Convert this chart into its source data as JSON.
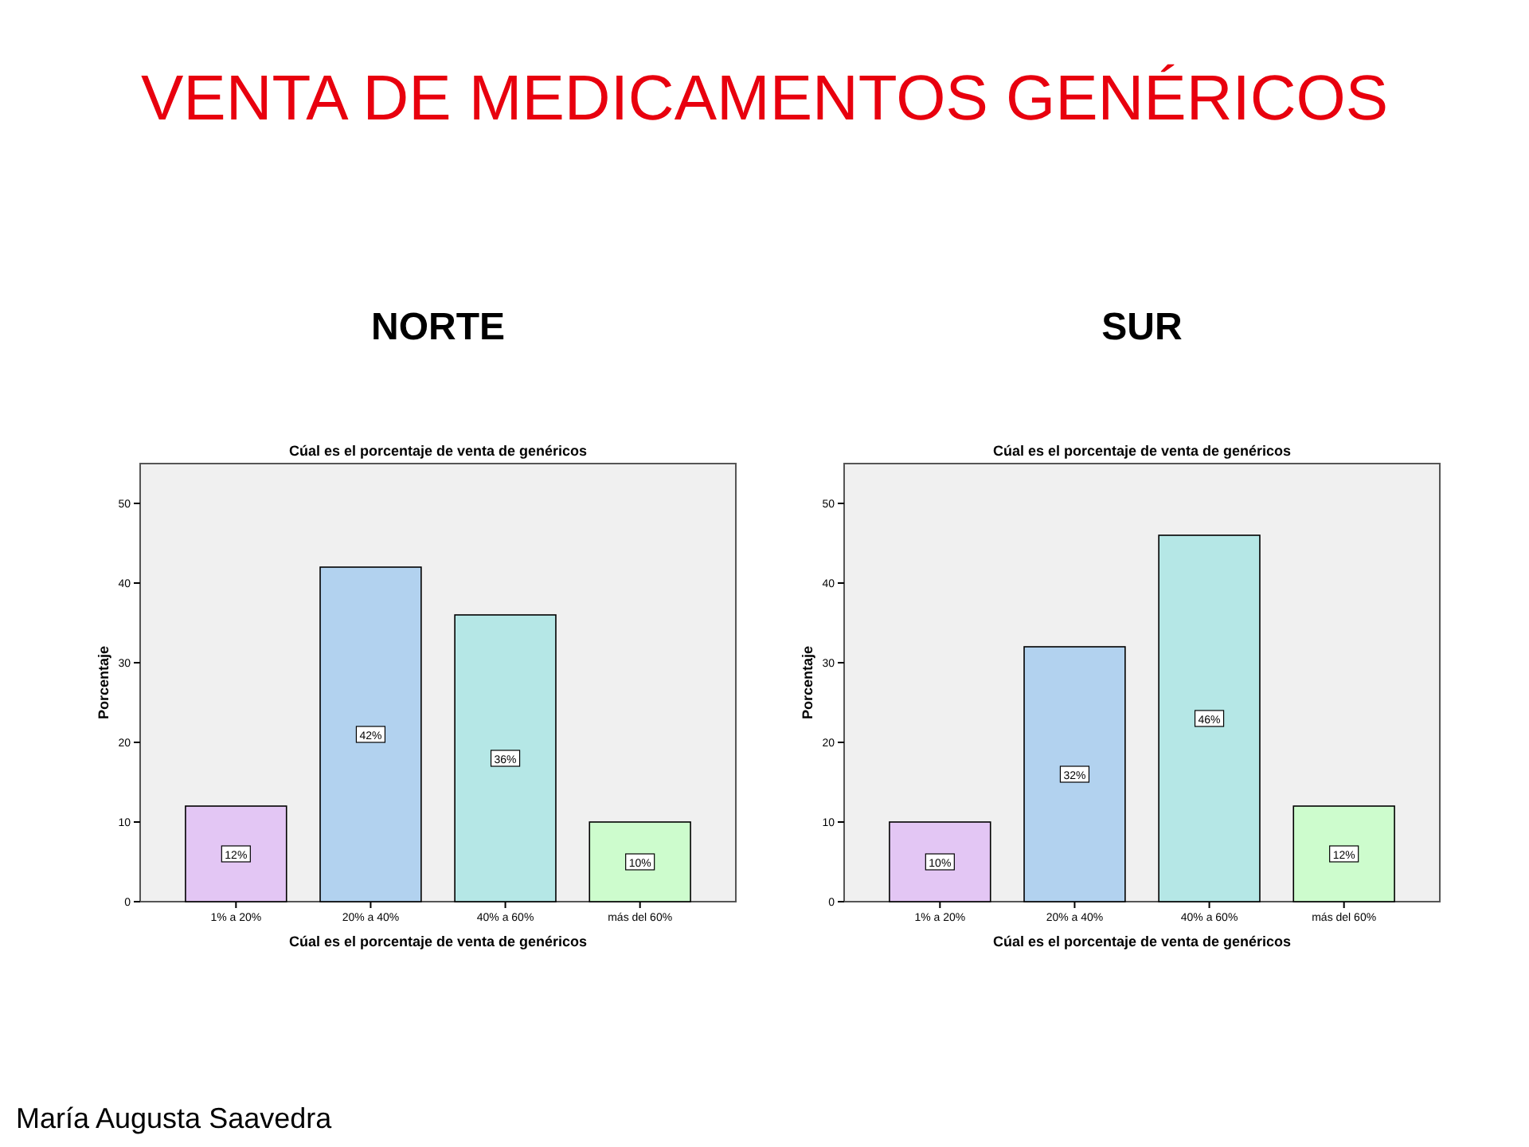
{
  "chart_data": [
    {
      "type": "bar",
      "title": "Cúal es el porcentaje de venta de genéricos",
      "subtitle": "NORTE",
      "xlabel": "Cúal es el porcentaje de venta de genéricos",
      "ylabel": "Porcentaje",
      "categories": [
        "1% a 20%",
        "20% a 40%",
        "40% a 60%",
        "más del 60%"
      ],
      "values": [
        12,
        42,
        36,
        10
      ],
      "colors": [
        "#e3c6f4",
        "#b2d2ef",
        "#b5e7e6",
        "#cdfccd"
      ],
      "value_labels": [
        "12%",
        "42%",
        "36%",
        "10%"
      ],
      "ylim": [
        0,
        55
      ],
      "yticks": [
        0,
        10,
        20,
        30,
        40,
        50
      ],
      "annotations": [
        "VENTA DE MEDICAMENTOS GENÉRICOS",
        "María Augusta Saavedra"
      ]
    },
    {
      "type": "bar",
      "title": "Cúal es el porcentaje de venta de genéricos",
      "subtitle": "SUR",
      "xlabel": "Cúal es el porcentaje de venta de genéricos",
      "ylabel": "Porcentaje",
      "categories": [
        "1% a 20%",
        "20% a 40%",
        "40% a 60%",
        "más del 60%"
      ],
      "values": [
        10,
        32,
        46,
        12
      ],
      "colors": [
        "#e3c6f4",
        "#b2d2ef",
        "#b5e7e6",
        "#cdfccd"
      ],
      "value_labels": [
        "10%",
        "32%",
        "46%",
        "12%"
      ],
      "ylim": [
        0,
        55
      ],
      "yticks": [
        0,
        10,
        20,
        30,
        40,
        50
      ]
    }
  ]
}
